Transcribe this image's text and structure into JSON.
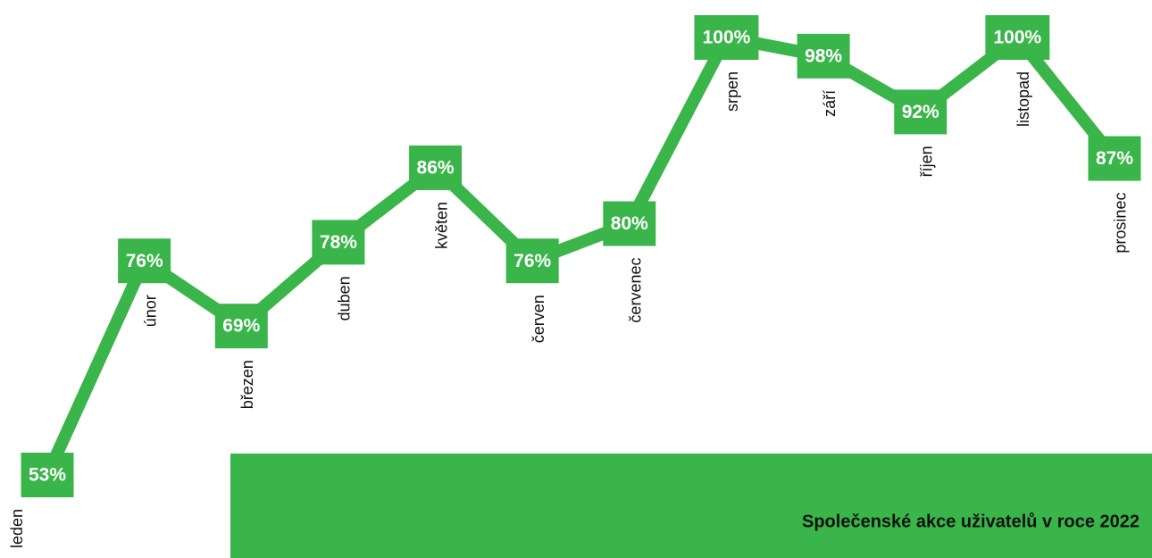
{
  "chart_data": {
    "type": "line",
    "title": "Společenské akce uživatelů v roce 2022",
    "categories": [
      "leden",
      "únor",
      "březen",
      "duben",
      "květen",
      "červen",
      "červenec",
      "srpen",
      "září",
      "říjen",
      "listopad",
      "prosinec"
    ],
    "values": [
      53,
      76,
      69,
      78,
      86,
      76,
      80,
      100,
      98,
      92,
      100,
      87
    ],
    "value_labels": [
      "53%",
      "76%",
      "69%",
      "78%",
      "86%",
      "76%",
      "80%",
      "100%",
      "98%",
      "92%",
      "100%",
      "87%"
    ],
    "color": "#3ab54a"
  }
}
